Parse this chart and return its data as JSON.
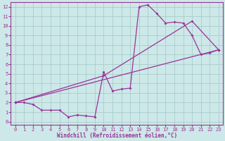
{
  "xlabel": "Windchill (Refroidissement éolien,°C)",
  "background_color": "#cde8e8",
  "grid_color": "#aacccc",
  "line_color": "#993399",
  "xlim": [
    -0.5,
    23.5
  ],
  "ylim": [
    -0.3,
    12.5
  ],
  "x_ticks": [
    0,
    1,
    2,
    3,
    4,
    5,
    6,
    7,
    8,
    9,
    10,
    11,
    12,
    13,
    14,
    15,
    16,
    17,
    18,
    19,
    20,
    21,
    22,
    23
  ],
  "y_ticks": [
    0,
    1,
    2,
    3,
    4,
    5,
    6,
    7,
    8,
    9,
    10,
    11,
    12
  ],
  "series1_x": [
    0,
    1,
    2,
    3,
    4,
    5,
    6,
    7,
    8,
    9,
    10,
    11,
    12,
    13,
    14,
    15,
    16,
    17,
    18,
    19,
    20,
    21,
    22,
    23
  ],
  "series1_y": [
    2.0,
    2.0,
    1.8,
    1.2,
    1.2,
    1.2,
    0.5,
    0.7,
    0.6,
    0.5,
    5.2,
    3.2,
    3.4,
    3.5,
    12.0,
    12.2,
    11.3,
    10.3,
    10.4,
    10.3,
    9.0,
    7.0,
    7.2,
    7.5
  ],
  "series2_x": [
    0,
    23
  ],
  "series2_y": [
    2.0,
    7.5
  ],
  "series3_x": [
    0,
    10,
    20,
    23
  ],
  "series3_y": [
    2.0,
    4.8,
    10.5,
    7.5
  ],
  "marker_size": 2.0,
  "line_width": 0.9,
  "tick_fontsize": 5.0,
  "xlabel_fontsize": 5.5,
  "font_family": "monospace"
}
